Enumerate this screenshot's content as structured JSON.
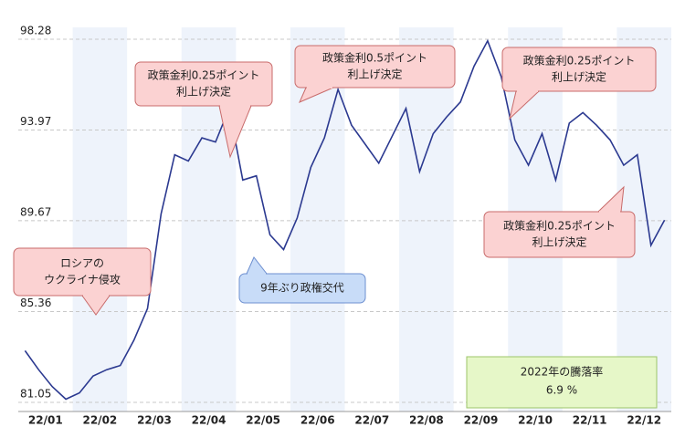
{
  "chart_data": {
    "type": "line",
    "categories": [
      null,
      null,
      "22/01",
      null,
      null,
      null,
      "22/02",
      null,
      null,
      null,
      "22/03",
      null,
      null,
      null,
      "22/04",
      null,
      null,
      null,
      "22/05",
      null,
      null,
      null,
      "22/06",
      null,
      null,
      null,
      "22/07",
      null,
      null,
      null,
      "22/08",
      null,
      null,
      null,
      "22/09",
      null,
      null,
      null,
      "22/10",
      null,
      null,
      null,
      "22/11",
      null,
      null,
      null,
      "22/12",
      null
    ],
    "series": [
      {
        "color": "#2b3990",
        "values": [
          83.5,
          82.6,
          81.8,
          81.2,
          81.5,
          82.3,
          82.6,
          82.8,
          84.0,
          85.5,
          90.0,
          92.8,
          92.5,
          93.6,
          93.4,
          95.0,
          91.6,
          91.8,
          89.0,
          88.3,
          89.8,
          92.2,
          93.6,
          95.9,
          94.2,
          93.3,
          92.4,
          93.7,
          95.0,
          92.0,
          93.8,
          94.6,
          95.3,
          97.0,
          98.2,
          96.5,
          93.5,
          92.3,
          93.8,
          91.6,
          94.3,
          94.8,
          94.2,
          93.5,
          92.3,
          92.8,
          88.5,
          89.7
        ]
      }
    ],
    "ylim": [
      81.05,
      98.28
    ],
    "yticks": [
      81.05,
      85.36,
      89.67,
      93.97,
      98.28
    ],
    "grid": true,
    "annotations": [
      {
        "lines": [
          "ロシアの",
          "ウクライナ侵攻"
        ]
      },
      {
        "lines": [
          "政策金利0.25ポイント",
          "利上げ決定"
        ]
      },
      {
        "lines": [
          "9年ぶり政権交代"
        ]
      },
      {
        "lines": [
          "政策金利0.5ポイント",
          "利上げ決定"
        ]
      },
      {
        "lines": [
          "政策金利0.25ポイント",
          "利上げ決定"
        ]
      },
      {
        "lines": [
          "政策金利0.25ポイント",
          "利上げ決定"
        ]
      }
    ],
    "result_box": {
      "title": "2022年の騰落率",
      "value": "6.9 %"
    }
  }
}
